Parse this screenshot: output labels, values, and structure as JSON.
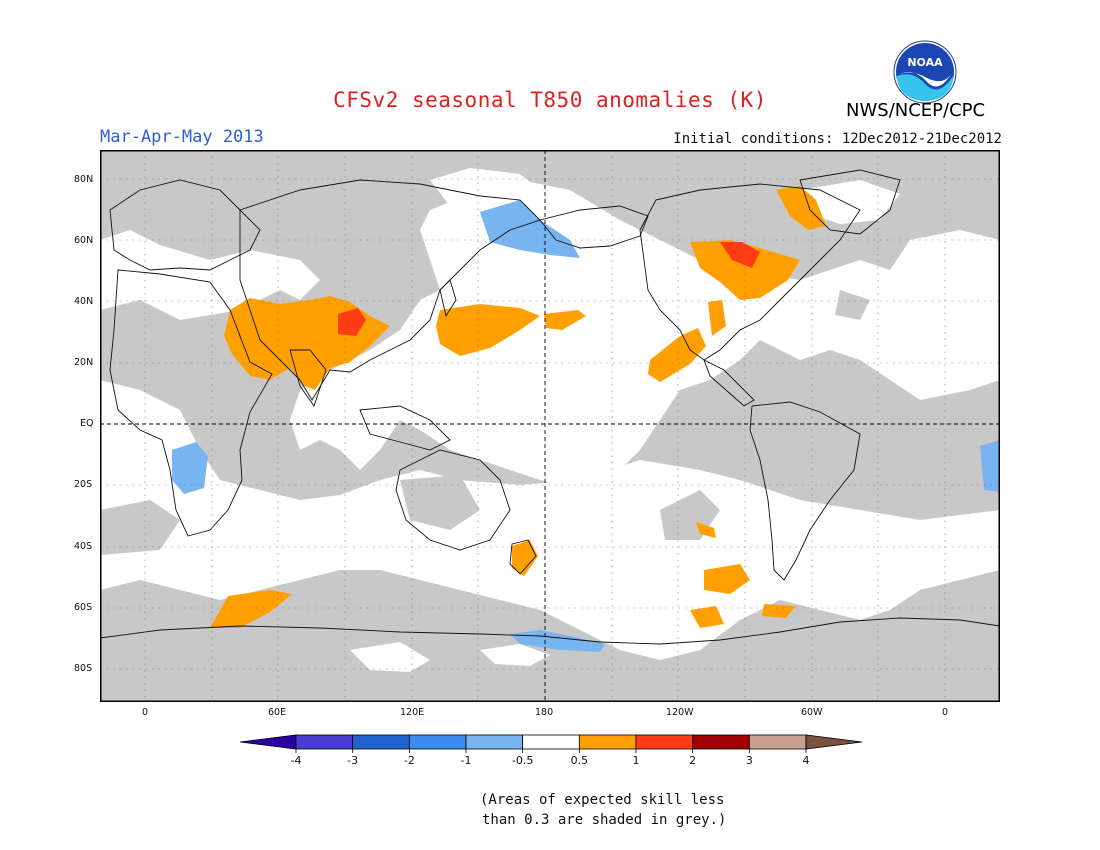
{
  "header": {
    "title": "CFSv2 seasonal T850 anomalies (K)",
    "season": "Mar-Apr-May 2013",
    "initial_conditions": "Initial conditions: 12Dec2012-21Dec2012",
    "agency": "NWS/NCEP/CPC",
    "logo_text": "NOAA"
  },
  "map": {
    "projection": "equirectangular",
    "lat_labels": [
      "80N",
      "60N",
      "40N",
      "20N",
      "EQ",
      "20S",
      "40S",
      "60S",
      "80S"
    ],
    "lon_labels": [
      "0",
      "60E",
      "120E",
      "180",
      "120W",
      "60W",
      "0"
    ],
    "colors": {
      "grey_low_skill": "#c8c8c8",
      "neutral": "#ffffff",
      "warm_05_1": "#ffa000",
      "warm_1_2": "#ff3c14",
      "cool_neg1_neg05": "#78b4f0"
    }
  },
  "colorbar": {
    "labels": [
      "-4",
      "-3",
      "-2",
      "-1",
      "-0.5",
      "0.5",
      "1",
      "2",
      "3",
      "4"
    ],
    "colors": [
      "#2a00a0",
      "#4a3cd0",
      "#1f64d0",
      "#3c8cf0",
      "#78b4f0",
      "#ffffff",
      "#ffa000",
      "#ff3c14",
      "#a00000",
      "#c8a090",
      "#7a5040"
    ]
  },
  "footnote": {
    "line1": "(Areas of expected skill less",
    "line2": "than 0.3 are shaded in grey.)"
  }
}
